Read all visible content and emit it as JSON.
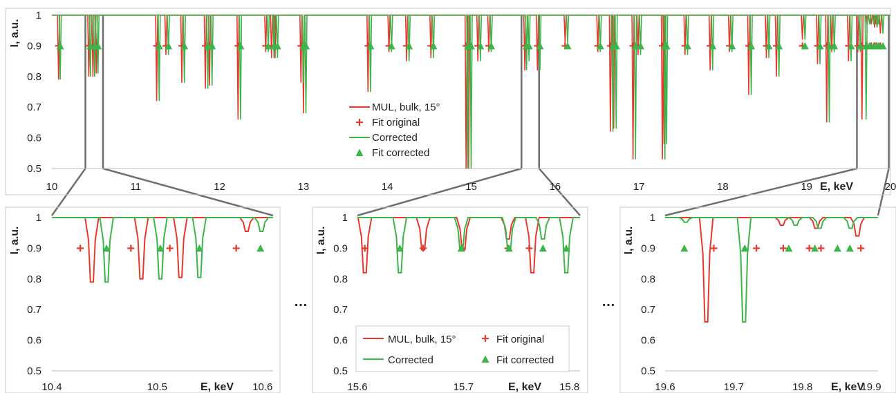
{
  "colors": {
    "original": "#e8382b",
    "corrected": "#3cb54a",
    "connector": "#6e6e6e"
  },
  "axis_text": {
    "ylabel": "I, a.u.",
    "xlabel": "E, keV"
  },
  "ellipsis": "…",
  "chart_data": [
    {
      "type": "line",
      "panel": "overview",
      "xlabel": "E, keV",
      "ylabel": "I, a.u.",
      "xlim": [
        10,
        20
      ],
      "ylim": [
        0.5,
        1
      ],
      "xticks": [
        "10",
        "11",
        "12",
        "13",
        "14",
        "15",
        "16",
        "17",
        "18",
        "19",
        "20"
      ],
      "yticks": [
        "0.5",
        "0.6",
        "0.7",
        "0.8",
        "0.9",
        "1"
      ],
      "legend_position": "center",
      "legend": [
        "MUL, bulk, 15°",
        "Fit original",
        "Corrected",
        "Fit corrected"
      ],
      "series": [
        {
          "name": "MUL, bulk, 15°",
          "type": "dips",
          "x": [
            10.08,
            10.44,
            10.49,
            10.53,
            11.25,
            11.36,
            11.55,
            11.83,
            11.88,
            12.22,
            12.55,
            12.62,
            12.66,
            12.97,
            13.0,
            13.77,
            14.02,
            14.23,
            14.52,
            14.94,
            14.97,
            15.08,
            15.21,
            15.64,
            15.66,
            15.79,
            16.12,
            16.51,
            16.66,
            16.7,
            16.93,
            16.99,
            17.28,
            17.3,
            17.55,
            17.85,
            18.08,
            18.31,
            18.52,
            18.64,
            18.95,
            19.13,
            19.24,
            19.3,
            19.5,
            19.61,
            19.66,
            19.72,
            19.77,
            19.81,
            19.83,
            19.88
          ],
          "y": [
            0.79,
            0.8,
            0.8,
            0.81,
            0.72,
            0.87,
            0.78,
            0.76,
            0.77,
            0.66,
            0.88,
            0.86,
            0.86,
            0.78,
            0.68,
            0.75,
            0.88,
            0.85,
            0.86,
            0.5,
            0.5,
            0.85,
            0.88,
            0.82,
            0.85,
            0.82,
            0.91,
            0.88,
            0.62,
            0.63,
            0.53,
            0.87,
            0.53,
            0.58,
            0.87,
            0.82,
            0.88,
            0.74,
            0.86,
            0.8,
            0.92,
            0.84,
            0.65,
            0.88,
            0.85,
            0.88,
            0.66,
            0.97,
            0.97,
            0.96,
            0.97,
            0.94
          ]
        },
        {
          "name": "Fit original",
          "type": "markers",
          "y": 0.9,
          "x": [
            10.08,
            10.44,
            10.49,
            10.53,
            11.25,
            11.36,
            11.55,
            11.83,
            11.88,
            12.22,
            12.55,
            12.62,
            12.66,
            12.97,
            13.0,
            13.77,
            14.02,
            14.23,
            14.52,
            14.94,
            14.97,
            15.08,
            15.21,
            15.64,
            15.66,
            15.79,
            16.12,
            16.51,
            16.66,
            16.7,
            16.93,
            16.99,
            17.28,
            17.3,
            17.55,
            17.85,
            18.08,
            18.31,
            18.52,
            18.64,
            18.95,
            19.13,
            19.24,
            19.3,
            19.5,
            19.61,
            19.66,
            19.72,
            19.77,
            19.81,
            19.83,
            19.88
          ]
        },
        {
          "name": "Corrected",
          "type": "dips",
          "x": [
            10.1,
            10.46,
            10.51,
            10.55,
            11.28,
            11.39,
            11.58,
            11.86,
            11.91,
            12.25,
            12.58,
            12.65,
            12.69,
            13.0,
            13.03,
            13.8,
            14.05,
            14.26,
            14.55,
            14.96,
            15.0,
            15.11,
            15.24,
            15.66,
            15.69,
            15.82,
            16.15,
            16.54,
            16.69,
            16.73,
            16.96,
            17.02,
            17.31,
            17.33,
            17.58,
            17.88,
            18.11,
            18.34,
            18.55,
            18.67,
            18.98,
            19.16,
            19.27,
            19.33,
            19.53,
            19.64,
            19.71,
            19.75,
            19.8,
            19.84,
            19.86,
            19.91
          ],
          "y": [
            0.79,
            0.8,
            0.8,
            0.81,
            0.72,
            0.87,
            0.78,
            0.76,
            0.77,
            0.66,
            0.88,
            0.86,
            0.86,
            0.78,
            0.68,
            0.75,
            0.88,
            0.85,
            0.86,
            0.5,
            0.5,
            0.85,
            0.88,
            0.82,
            0.85,
            0.82,
            0.91,
            0.88,
            0.62,
            0.63,
            0.53,
            0.87,
            0.53,
            0.58,
            0.87,
            0.82,
            0.88,
            0.74,
            0.86,
            0.8,
            0.92,
            0.84,
            0.65,
            0.88,
            0.85,
            0.88,
            0.66,
            0.97,
            0.97,
            0.96,
            0.97,
            0.94
          ]
        },
        {
          "name": "Fit corrected",
          "type": "markers",
          "y": 0.9,
          "x": [
            10.1,
            10.46,
            10.51,
            10.55,
            11.28,
            11.39,
            11.58,
            11.86,
            11.91,
            12.25,
            12.58,
            12.65,
            12.69,
            13.0,
            13.03,
            13.8,
            14.05,
            14.26,
            14.55,
            14.96,
            15.0,
            15.11,
            15.24,
            15.66,
            15.69,
            15.82,
            16.15,
            16.54,
            16.69,
            16.73,
            16.96,
            17.02,
            17.31,
            17.33,
            17.58,
            17.88,
            18.11,
            18.34,
            18.55,
            18.67,
            18.98,
            19.16,
            19.27,
            19.33,
            19.53,
            19.64,
            19.71,
            19.75,
            19.8,
            19.84,
            19.86,
            19.91
          ]
        }
      ],
      "zoom_regions": [
        [
          10.4,
          10.61
        ],
        [
          15.6,
          15.81
        ],
        [
          19.6,
          19.98
        ]
      ]
    },
    {
      "type": "line",
      "panel": "zoom-1",
      "xlabel": "E, keV",
      "ylabel": "I, a.u.",
      "xlim": [
        10.4,
        10.61
      ],
      "ylim": [
        0.5,
        1
      ],
      "xticks": [
        {
          "v": 10.4,
          "label": "10.4"
        },
        {
          "v": 10.5,
          "label": "10.5"
        },
        {
          "v": 10.6,
          "label": "10.6"
        }
      ],
      "yticks": [
        "0.5",
        "0.6",
        "0.7",
        "0.8",
        "0.9",
        "1"
      ],
      "series": [
        {
          "name": "MUL, bulk, 15°",
          "type": "dips",
          "x": [
            10.438,
            10.485,
            10.522,
            10.585
          ],
          "y": [
            0.79,
            0.8,
            0.805,
            0.955
          ]
        },
        {
          "name": "Fit original",
          "type": "markers",
          "y": 0.9,
          "x": [
            10.427,
            10.475,
            10.512,
            10.575
          ]
        },
        {
          "name": "Corrected",
          "type": "dips",
          "x": [
            10.452,
            10.503,
            10.54,
            10.599
          ],
          "y": [
            0.79,
            0.8,
            0.805,
            0.955
          ]
        },
        {
          "name": "Fit corrected",
          "type": "markers",
          "y": 0.9,
          "x": [
            10.452,
            10.503,
            10.54,
            10.598
          ]
        }
      ]
    },
    {
      "type": "line",
      "panel": "zoom-2",
      "xlabel": "E, keV",
      "ylabel": "I, a.u.",
      "xlim": [
        15.6,
        15.81
      ],
      "ylim": [
        0.5,
        1
      ],
      "xticks": [
        {
          "v": 15.6,
          "label": "15.6"
        },
        {
          "v": 15.7,
          "label": "15.7"
        },
        {
          "v": 15.8,
          "label": "15.8"
        }
      ],
      "yticks": [
        "0.5",
        "0.6",
        "0.7",
        "0.8",
        "0.9",
        "1"
      ],
      "legend_position": "bottom",
      "legend": [
        "MUL, bulk, 15°",
        "Fit original",
        "Corrected",
        "Fit corrected"
      ],
      "series": [
        {
          "name": "MUL, bulk, 15°",
          "type": "dips",
          "x": [
            15.607,
            15.662,
            15.7,
            15.742,
            15.765
          ],
          "y": [
            0.82,
            0.895,
            0.895,
            0.93,
            0.82
          ]
        },
        {
          "name": "Fit original",
          "type": "markers",
          "y": 0.9,
          "x": [
            15.607,
            15.662,
            15.699,
            15.742,
            15.762
          ]
        },
        {
          "name": "Corrected",
          "type": "dips",
          "x": [
            15.64,
            15.698,
            15.743,
            15.775,
            15.797
          ],
          "y": [
            0.82,
            0.895,
            0.895,
            0.93,
            0.82
          ]
        },
        {
          "name": "Fit corrected",
          "type": "markers",
          "y": 0.9,
          "x": [
            15.64,
            15.698,
            15.743,
            15.775,
            15.797
          ]
        }
      ]
    },
    {
      "type": "line",
      "panel": "zoom-3",
      "xlabel": "E, keV",
      "ylabel": "I, a.u.",
      "xlim": [
        19.6,
        19.91
      ],
      "ylim": [
        0.5,
        1
      ],
      "xticks": [
        {
          "v": 19.6,
          "label": "19.6"
        },
        {
          "v": 19.7,
          "label": "19.7"
        },
        {
          "v": 19.8,
          "label": "19.8"
        },
        {
          "v": 19.9,
          "label": "19.9"
        }
      ],
      "yticks": [
        "0.5",
        "0.6",
        "0.7",
        "0.8",
        "0.9",
        "1"
      ],
      "series": [
        {
          "name": "MUL, bulk, 15°",
          "type": "dips",
          "x": [
            19.66,
            19.77,
            19.82,
            19.88
          ],
          "y": [
            0.66,
            0.975,
            0.965,
            0.94
          ]
        },
        {
          "name": "Fit original",
          "type": "markers",
          "y": 0.9,
          "x": [
            19.671,
            19.733,
            19.772,
            19.81,
            19.827,
            19.885
          ]
        },
        {
          "name": "Corrected",
          "type": "dips",
          "x": [
            19.63,
            19.715,
            19.79,
            19.825,
            19.87
          ],
          "y": [
            0.985,
            0.66,
            0.975,
            0.965,
            0.965
          ]
        },
        {
          "name": "Fit corrected",
          "type": "markers",
          "y": 0.9,
          "x": [
            19.628,
            19.716,
            19.78,
            19.818,
            19.851,
            19.869
          ]
        }
      ]
    }
  ]
}
